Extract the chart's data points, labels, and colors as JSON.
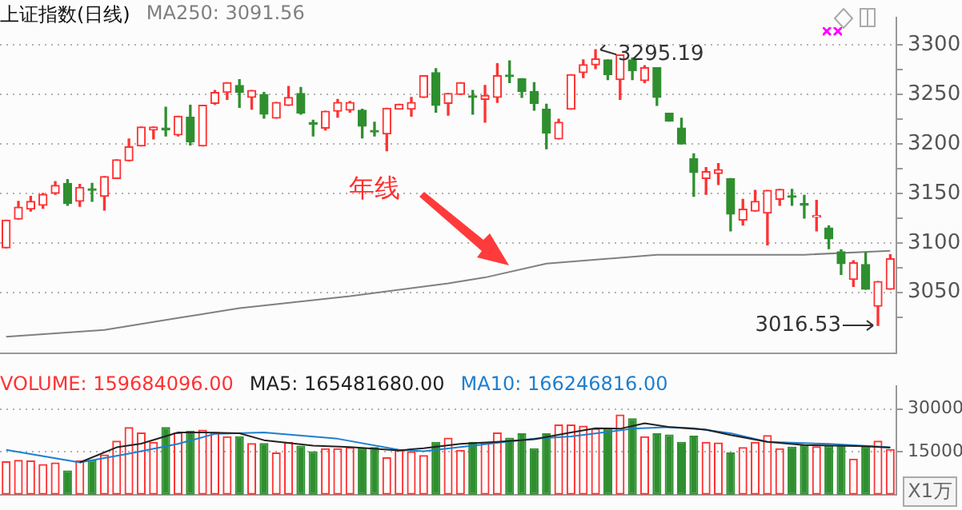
{
  "chart_data": [
    {
      "type": "candlestick",
      "title": "上证指数(日线)",
      "categories": [
        null,
        null,
        null,
        null,
        null,
        null,
        null,
        null,
        null,
        null,
        null,
        null,
        null,
        null,
        null,
        null,
        null,
        null,
        null,
        null,
        null,
        null,
        null,
        null,
        null,
        null,
        null,
        null,
        null,
        null,
        null,
        null,
        null,
        null,
        null,
        null,
        null,
        null,
        null,
        null,
        null,
        null,
        null,
        null,
        null,
        null,
        null,
        null,
        null,
        null,
        null,
        null,
        null,
        null,
        null,
        null,
        null,
        null,
        null,
        null,
        null,
        null,
        null,
        null,
        null,
        null,
        null,
        null,
        null,
        null,
        null,
        null,
        null
      ],
      "ohlc": [
        [
          3095,
          3123,
          3095,
          3123
        ],
        [
          3124,
          3142,
          3124,
          3136
        ],
        [
          3134,
          3147,
          3132,
          3142
        ],
        [
          3138,
          3150,
          3135,
          3149
        ],
        [
          3150,
          3162,
          3149,
          3158
        ],
        [
          3160,
          3164,
          3138,
          3140
        ],
        [
          3142,
          3159,
          3137,
          3156
        ],
        [
          3154,
          3160,
          3142,
          3153
        ],
        [
          3147,
          3167,
          3133,
          3167
        ],
        [
          3165,
          3184,
          3165,
          3184
        ],
        [
          3183,
          3205,
          3183,
          3197
        ],
        [
          3198,
          3217,
          3198,
          3217
        ],
        [
          3214,
          3217,
          3205,
          3217
        ],
        [
          3216,
          3237,
          3208,
          3214
        ],
        [
          3209,
          3228,
          3208,
          3228
        ],
        [
          3227,
          3239,
          3199,
          3202
        ],
        [
          3198,
          3239,
          3198,
          3239
        ],
        [
          3241,
          3254,
          3240,
          3252
        ],
        [
          3252,
          3262,
          3245,
          3262
        ],
        [
          3259,
          3265,
          3237,
          3252
        ],
        [
          3247,
          3254,
          3235,
          3254
        ],
        [
          3250,
          3252,
          3226,
          3230
        ],
        [
          3226,
          3242,
          3226,
          3242
        ],
        [
          3239,
          3258,
          3239,
          3247
        ],
        [
          3251,
          3257,
          3230,
          3231
        ],
        [
          3221,
          3224,
          3208,
          3220
        ],
        [
          3216,
          3233,
          3214,
          3233
        ],
        [
          3233,
          3245,
          3227,
          3242
        ],
        [
          3234,
          3243,
          3232,
          3242
        ],
        [
          3234,
          3235,
          3206,
          3218
        ],
        [
          3213,
          3222,
          3208,
          3212
        ],
        [
          3210,
          3236,
          3193,
          3236
        ],
        [
          3235,
          3240,
          3235,
          3240
        ],
        [
          3235,
          3247,
          3228,
          3242
        ],
        [
          3247,
          3269,
          3247,
          3269
        ],
        [
          3272,
          3276,
          3232,
          3239
        ],
        [
          3241,
          3251,
          3229,
          3251
        ],
        [
          3250,
          3262,
          3250,
          3262
        ],
        [
          3248,
          3254,
          3230,
          3247
        ],
        [
          3245,
          3259,
          3222,
          3249
        ],
        [
          3247,
          3281,
          3242,
          3269
        ],
        [
          3269,
          3284,
          3262,
          3268
        ],
        [
          3266,
          3266,
          3247,
          3253
        ],
        [
          3253,
          3262,
          3234,
          3241
        ],
        [
          3235,
          3240,
          3195,
          3211
        ],
        [
          3205,
          3225,
          3205,
          3222
        ],
        [
          3235,
          3270,
          3235,
          3270
        ],
        [
          3272,
          3285,
          3267,
          3280
        ],
        [
          3280,
          3295.19,
          3276,
          3286
        ],
        [
          3285,
          3285,
          3265,
          3270
        ],
        [
          3265,
          3290,
          3245,
          3290
        ],
        [
          3285,
          3287,
          3265,
          3274
        ],
        [
          3264,
          3279,
          3262,
          3277
        ],
        [
          3277,
          3277,
          3239,
          3247
        ],
        [
          3231,
          3231,
          3223,
          3223
        ],
        [
          3216,
          3226,
          3200,
          3200
        ],
        [
          3185,
          3190,
          3147,
          3171
        ],
        [
          3165,
          3176,
          3149,
          3172
        ],
        [
          3170,
          3180,
          3159,
          3174
        ],
        [
          3165,
          3165,
          3112,
          3129
        ],
        [
          3123,
          3144,
          3118,
          3134
        ],
        [
          3132,
          3153,
          3132,
          3142
        ],
        [
          3130,
          3153,
          3098,
          3153
        ],
        [
          3144,
          3154,
          3138,
          3154
        ],
        [
          3147,
          3154,
          3138,
          3146
        ],
        [
          3139,
          3148,
          3125,
          3138
        ],
        [
          3126,
          3143,
          3112,
          3127
        ],
        [
          3115,
          3117,
          3094,
          3104
        ],
        [
          3091,
          3093,
          3068,
          3079
        ],
        [
          3063,
          3082,
          3056,
          3080
        ],
        [
          3078,
          3090,
          3053,
          3053
        ],
        [
          3036,
          3061,
          3016.53,
          3061
        ],
        [
          3053,
          3088,
          3053,
          3084
        ]
      ],
      "colors": [
        "#ff3232",
        "#ff3232",
        "#ff3232",
        "#ff3232",
        "#ff3232",
        "#2f8f2f",
        "#ff3232",
        "#2f8f2f",
        "#ff3232",
        "#ff3232",
        "#ff3232",
        "#ff3232",
        "#ff3232",
        "#2f8f2f",
        "#ff3232",
        "#2f8f2f",
        "#ff3232",
        "#ff3232",
        "#ff3232",
        "#2f8f2f",
        "#ff3232",
        "#2f8f2f",
        "#ff3232",
        "#ff3232",
        "#2f8f2f",
        "#2f8f2f",
        "#ff3232",
        "#ff3232",
        "#ff3232",
        "#2f8f2f",
        "#2f8f2f",
        "#ff3232",
        "#ff3232",
        "#ff3232",
        "#ff3232",
        "#2f8f2f",
        "#ff3232",
        "#ff3232",
        "#2f8f2f",
        "#ff3232",
        "#ff3232",
        "#2f8f2f",
        "#2f8f2f",
        "#2f8f2f",
        "#2f8f2f",
        "#ff3232",
        "#ff3232",
        "#ff3232",
        "#ff3232",
        "#2f8f2f",
        "#ff3232",
        "#2f8f2f",
        "#ff3232",
        "#2f8f2f",
        "#2f8f2f",
        "#2f8f2f",
        "#2f8f2f",
        "#ff3232",
        "#ff3232",
        "#2f8f2f",
        "#ff3232",
        "#ff3232",
        "#ff3232",
        "#ff3232",
        "#2f8f2f",
        "#2f8f2f",
        "#ff3232",
        "#2f8f2f",
        "#2f8f2f",
        "#ff3232",
        "#2f8f2f",
        "#ff3232",
        "#ff3232"
      ],
      "series": [
        {
          "name": "MA250: 3091.56",
          "type": "line",
          "color": "#808080",
          "values": [
            3005,
            null,
            null,
            null,
            null,
            null,
            null,
            null,
            3012,
            null,
            null,
            null,
            null,
            null,
            3024,
            null,
            null,
            null,
            null,
            3034,
            null,
            null,
            null,
            null,
            null,
            null,
            null,
            null,
            3046,
            null,
            null,
            null,
            null,
            null,
            null,
            null,
            3059,
            null,
            null,
            3065,
            null,
            null,
            null,
            null,
            3079,
            null,
            null,
            null,
            null,
            null,
            null,
            null,
            null,
            3088,
            null,
            null,
            null,
            null,
            null,
            null,
            null,
            null,
            null,
            null,
            null,
            3088,
            null,
            null,
            null,
            null,
            null,
            null,
            3092
          ]
        }
      ],
      "ylim": [
        2988,
        3328
      ],
      "yticks": [
        {
          "value": 3025,
          "label": null
        },
        3050,
        {
          "value": 3075,
          "label": null
        },
        3100,
        {
          "value": 3125,
          "label": null
        },
        3150,
        {
          "value": 3175,
          "label": null
        },
        3200,
        {
          "value": 3225,
          "label": null
        },
        3250,
        {
          "value": 3275,
          "label": null
        },
        3300
      ],
      "grid": "y",
      "legend": "top left",
      "tick_labels": "y",
      "annotations": [
        "3295.19",
        "3016.53",
        "年线"
      ]
    },
    {
      "type": "bar",
      "categories": [
        null,
        null,
        null,
        null,
        null,
        null,
        null,
        null,
        null,
        null,
        null,
        null,
        null,
        null,
        null,
        null,
        null,
        null,
        null,
        null,
        null,
        null,
        null,
        null,
        null,
        null,
        null,
        null,
        null,
        null,
        null,
        null,
        null,
        null,
        null,
        null,
        null,
        null,
        null,
        null,
        null,
        null,
        null,
        null,
        null,
        null,
        null,
        null,
        null,
        null,
        null,
        null,
        null,
        null,
        null,
        null,
        null,
        null,
        null,
        null,
        null,
        null,
        null,
        null,
        null,
        null,
        null,
        null,
        null,
        null,
        null,
        null,
        null
      ],
      "series": [
        {
          "name": "VOLUME: 159684096.00",
          "type": "bar",
          "colors": [
            "#ff3232",
            "#ff3232",
            "#ff3232",
            "#ff3232",
            "#ff3232",
            "#2f8f2f",
            "#ff3232",
            "#2f8f2f",
            "#ff3232",
            "#ff3232",
            "#ff3232",
            "#ff3232",
            "#ff3232",
            "#2f8f2f",
            "#ff3232",
            "#2f8f2f",
            "#ff3232",
            "#ff3232",
            "#ff3232",
            "#2f8f2f",
            "#ff3232",
            "#2f8f2f",
            "#ff3232",
            "#ff3232",
            "#2f8f2f",
            "#2f8f2f",
            "#ff3232",
            "#ff3232",
            "#ff3232",
            "#2f8f2f",
            "#2f8f2f",
            "#ff3232",
            "#ff3232",
            "#ff3232",
            "#ff3232",
            "#2f8f2f",
            "#ff3232",
            "#ff3232",
            "#2f8f2f",
            "#ff3232",
            "#ff3232",
            "#2f8f2f",
            "#2f8f2f",
            "#2f8f2f",
            "#2f8f2f",
            "#ff3232",
            "#ff3232",
            "#ff3232",
            "#ff3232",
            "#2f8f2f",
            "#ff3232",
            "#2f8f2f",
            "#ff3232",
            "#2f8f2f",
            "#2f8f2f",
            "#2f8f2f",
            "#2f8f2f",
            "#ff3232",
            "#ff3232",
            "#2f8f2f",
            "#ff3232",
            "#ff3232",
            "#ff3232",
            "#ff3232",
            "#2f8f2f",
            "#2f8f2f",
            "#ff3232",
            "#2f8f2f",
            "#2f8f2f",
            "#ff3232",
            "#2f8f2f",
            "#ff3232",
            "#ff3232"
          ],
          "values": [
            11700,
            12200,
            12000,
            10700,
            11300,
            8500,
            12000,
            12200,
            14100,
            18900,
            23700,
            21800,
            18500,
            23700,
            21800,
            22400,
            22800,
            22000,
            20500,
            20500,
            18100,
            18100,
            14800,
            18500,
            17200,
            15200,
            16300,
            16300,
            16700,
            16300,
            16700,
            13100,
            15700,
            15200,
            13900,
            18500,
            20000,
            15700,
            18500,
            18500,
            21800,
            20000,
            21500,
            16300,
            21500,
            24600,
            24600,
            24200,
            23300,
            23300,
            28100,
            26800,
            20500,
            21500,
            21100,
            18500,
            20700,
            18500,
            18300,
            14800,
            16700,
            18500,
            20900,
            16300,
            16800,
            17400,
            17000,
            17200,
            17400,
            12600,
            16800,
            18900,
            16000
          ]
        },
        {
          "name": "MA5: 165481680.00",
          "type": "line",
          "color": "#222222",
          "values": [
            null,
            null,
            null,
            null,
            null,
            null,
            11300,
            null,
            null,
            16600,
            null,
            17900,
            null,
            null,
            21800,
            null,
            21800,
            null,
            null,
            21500,
            null,
            19100,
            null,
            null,
            null,
            17200,
            null,
            null,
            16700,
            null,
            null,
            null,
            15500,
            null,
            16300,
            null,
            null,
            17800,
            null,
            null,
            18500,
            null,
            null,
            19400,
            null,
            null,
            21800,
            null,
            23300,
            null,
            23100,
            null,
            25000,
            null,
            23700,
            null,
            null,
            22800,
            null,
            20900,
            null,
            null,
            18500,
            null,
            null,
            17400,
            null,
            null,
            null,
            null,
            17000,
            null,
            16500
          ]
        },
        {
          "name": "MA10: 166246816.00",
          "type": "line",
          "color": "#1e7fd0",
          "values": [
            15700,
            null,
            null,
            null,
            null,
            null,
            11300,
            null,
            null,
            null,
            14400,
            null,
            null,
            null,
            17800,
            null,
            null,
            21300,
            null,
            null,
            null,
            21800,
            null,
            null,
            null,
            null,
            null,
            19600,
            null,
            null,
            null,
            null,
            15700,
            null,
            15200,
            null,
            null,
            16700,
            null,
            null,
            null,
            null,
            null,
            19600,
            null,
            null,
            20400,
            null,
            null,
            null,
            null,
            23100,
            null,
            null,
            23700,
            null,
            23300,
            null,
            null,
            21500,
            null,
            null,
            18500,
            null,
            null,
            null,
            null,
            17800,
            null,
            null,
            null,
            null,
            16600
          ]
        }
      ],
      "ylim": [
        0,
        38000
      ],
      "yticks": [
        15000,
        30000
      ],
      "grid": "y",
      "legend": "top left",
      "tick_labels": "y",
      "annotations": [
        "X1万"
      ]
    }
  ]
}
